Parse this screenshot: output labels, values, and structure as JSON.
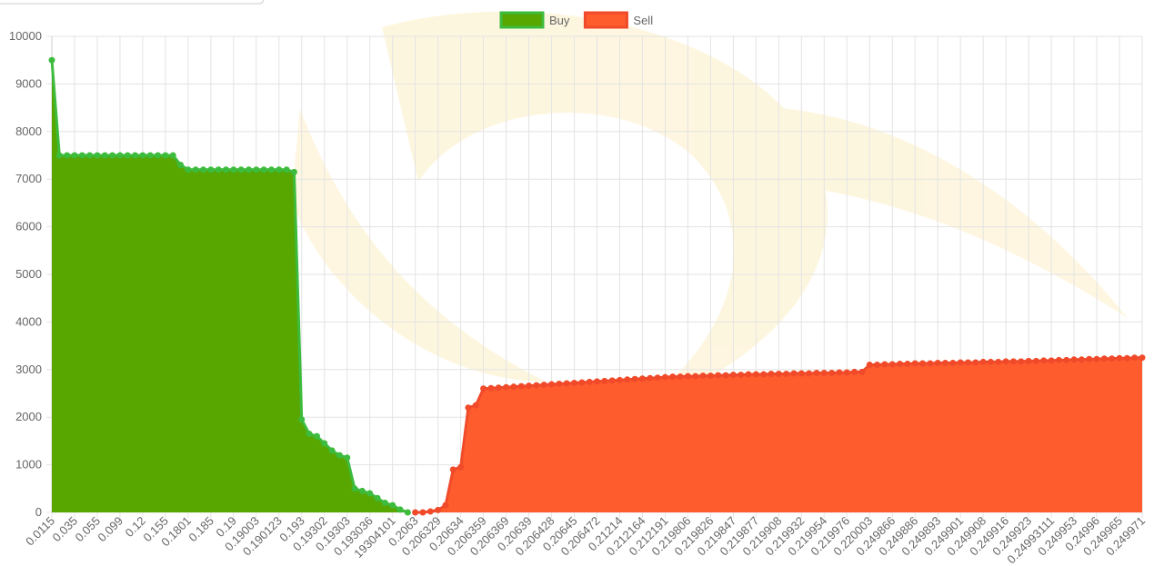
{
  "chart_data": {
    "type": "area",
    "categories": [
      "0.0115",
      null,
      null,
      "0.035",
      null,
      null,
      "0.055",
      null,
      null,
      "0.099",
      null,
      null,
      "0.12",
      null,
      null,
      "0.155",
      null,
      null,
      "0.1801",
      null,
      null,
      "0.185",
      null,
      null,
      "0.19",
      null,
      null,
      "0.19003",
      null,
      null,
      "0.190123",
      null,
      null,
      "0.193",
      null,
      null,
      "0.19302",
      null,
      null,
      "0.19303",
      null,
      null,
      "0.193036",
      null,
      null,
      "19304101",
      null,
      null,
      "0.2063",
      null,
      null,
      "0.206329",
      null,
      null,
      "0.20634",
      null,
      null,
      "0.206359",
      null,
      null,
      "0.206369",
      null,
      null,
      "0.20639",
      null,
      null,
      "0.206428",
      null,
      null,
      "0.20645",
      null,
      null,
      "0.206472",
      null,
      null,
      "0.21214",
      null,
      null,
      "0.212164",
      null,
      null,
      "0.212191",
      null,
      null,
      "0.219806",
      null,
      null,
      "0.219826",
      null,
      null,
      "0.219847",
      null,
      null,
      "0.219877",
      null,
      null,
      "0.219908",
      null,
      null,
      "0.219932",
      null,
      null,
      "0.219954",
      null,
      null,
      "0.219976",
      null,
      null,
      "0.220003",
      null,
      null,
      "0.249866",
      null,
      null,
      "0.249886",
      null,
      null,
      "0.249893",
      null,
      null,
      "0.249901",
      null,
      null,
      "0.249908",
      null,
      null,
      "0.249916",
      null,
      null,
      "0.249923",
      null,
      null,
      "0.24993111",
      null,
      null,
      "0.249953",
      null,
      null,
      "0.24996",
      null,
      null,
      "0.249965",
      null,
      null,
      "0.249971"
    ],
    "series": [
      {
        "name": "Buy",
        "color": "#58a700",
        "line_color": "#3dbb3d",
        "values": [
          9500,
          7500,
          7500,
          7500,
          7500,
          7500,
          7500,
          7500,
          7500,
          7500,
          7500,
          7500,
          7500,
          7500,
          7500,
          7500,
          7500,
          7300,
          7200,
          7200,
          7200,
          7200,
          7200,
          7200,
          7200,
          7200,
          7200,
          7200,
          7200,
          7200,
          7200,
          7200,
          7150,
          1950,
          1650,
          1600,
          1450,
          1300,
          1200,
          1150,
          500,
          450,
          400,
          300,
          200,
          150,
          60,
          0,
          null,
          null,
          null,
          null,
          null,
          null,
          null,
          null,
          null,
          null,
          null,
          null,
          null,
          null,
          null,
          null,
          null,
          null,
          null,
          null,
          null,
          null,
          null,
          null,
          null,
          null,
          null,
          null,
          null,
          null,
          null,
          null,
          null,
          null,
          null,
          null,
          null,
          null,
          null,
          null,
          null,
          null,
          null,
          null,
          null,
          null,
          null,
          null,
          null,
          null,
          null,
          null,
          null,
          null,
          null,
          null,
          null,
          null,
          null,
          null,
          null,
          null,
          null,
          null,
          null,
          null,
          null,
          null,
          null,
          null,
          null,
          null,
          null,
          null,
          null,
          null,
          null,
          null,
          null,
          null,
          null,
          null,
          null,
          null,
          null,
          null,
          null,
          null,
          null,
          null,
          null,
          null,
          null,
          null,
          null,
          null,
          null
        ]
      },
      {
        "name": "Sell",
        "color": "#ff5c2e",
        "line_color": "#f04a2a",
        "values": [
          null,
          null,
          null,
          null,
          null,
          null,
          null,
          null,
          null,
          null,
          null,
          null,
          null,
          null,
          null,
          null,
          null,
          null,
          null,
          null,
          null,
          null,
          null,
          null,
          null,
          null,
          null,
          null,
          null,
          null,
          null,
          null,
          null,
          null,
          null,
          null,
          null,
          null,
          null,
          null,
          null,
          null,
          null,
          null,
          null,
          null,
          null,
          null,
          0,
          0,
          20,
          50,
          150,
          900,
          950,
          2200,
          2250,
          2600,
          2610,
          2620,
          2630,
          2640,
          2650,
          2660,
          2670,
          2680,
          2690,
          2700,
          2710,
          2720,
          2730,
          2740,
          2750,
          2760,
          2770,
          2780,
          2790,
          2800,
          2810,
          2820,
          2830,
          2840,
          2850,
          2850,
          2860,
          2860,
          2870,
          2870,
          2880,
          2880,
          2890,
          2890,
          2900,
          2900,
          2900,
          2910,
          2910,
          2910,
          2920,
          2920,
          2920,
          2930,
          2930,
          2930,
          2940,
          2940,
          2950,
          2950,
          3100,
          3100,
          3110,
          3110,
          3120,
          3120,
          3130,
          3130,
          3130,
          3140,
          3140,
          3140,
          3150,
          3150,
          3150,
          3160,
          3160,
          3160,
          3170,
          3170,
          3170,
          3180,
          3180,
          3190,
          3190,
          3200,
          3200,
          3210,
          3210,
          3220,
          3220,
          3230,
          3230,
          3240,
          3240,
          3250,
          3250
        ]
      }
    ],
    "ylim": [
      0,
      10000
    ],
    "yticks": [
      0,
      1000,
      2000,
      3000,
      4000,
      5000,
      6000,
      7000,
      8000,
      9000,
      10000
    ],
    "grid": true,
    "legend": "top"
  }
}
